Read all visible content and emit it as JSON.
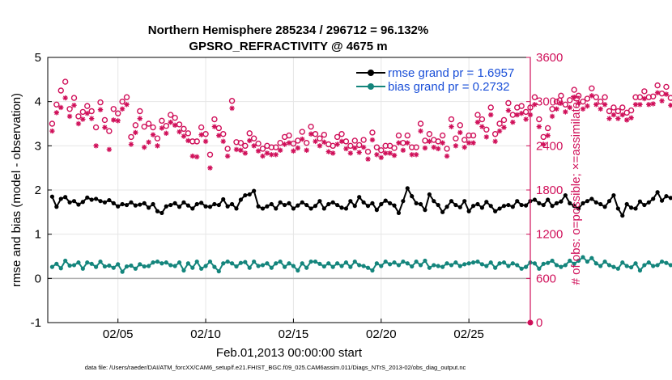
{
  "chart_data": {
    "type": "line",
    "title": "Northern Hemisphere 285234 / 296712 = 96.132%",
    "subtitle": "GPSRO_REFRACTIVITY @ 4675 m",
    "xlabel": "Feb.01,2013 00:00:00 start",
    "ylabel_left": "rmse and bias (model - observation)",
    "ylabel_right": "# of obs: o=possible; ×=assimilated",
    "ylim_left": [
      -1,
      5
    ],
    "ylim_right": [
      0,
      3600
    ],
    "xlim": [
      "2013-02-01",
      "2013-02-28"
    ],
    "x_tick_labels": [
      "02/05",
      "02/10",
      "02/15",
      "02/20",
      "02/25"
    ],
    "y_left_tick_labels": [
      "-1",
      "0",
      "1",
      "2",
      "3",
      "4",
      "5"
    ],
    "y_right_tick_labels": [
      "0",
      "600",
      "1200",
      "1800",
      "2400",
      "3000",
      "3600"
    ],
    "grid": true,
    "legend_position": "top-right",
    "footnote": "data file: /Users/raeder/DAI/ATM_forcXX/CAM6_setup/f.e21.FHIST_BGC.f09_025.CAM6assim.011/Diags_NTrS_2013-02/obs_diag_output.nc",
    "colors": {
      "rmse": "#000000",
      "bias": "#14857c",
      "obs_count": "#d0105a",
      "zero_line": "#b0b0b0"
    },
    "time_step_hours": 6,
    "series": [
      {
        "name": "rmse grand pr = 1.6957",
        "axis": "left",
        "values": [
          1.85,
          1.62,
          1.8,
          1.84,
          1.72,
          1.75,
          1.67,
          1.73,
          1.83,
          1.78,
          1.8,
          1.75,
          1.72,
          1.77,
          1.7,
          1.63,
          1.68,
          1.66,
          1.72,
          1.65,
          1.67,
          1.7,
          1.6,
          1.68,
          1.52,
          1.48,
          1.63,
          1.66,
          1.7,
          1.62,
          1.72,
          1.65,
          1.58,
          1.68,
          1.71,
          1.63,
          1.62,
          1.68,
          1.66,
          1.79,
          1.63,
          1.68,
          1.58,
          1.78,
          1.88,
          1.9,
          1.98,
          1.63,
          1.58,
          1.63,
          1.68,
          1.58,
          1.72,
          1.66,
          1.7,
          1.58,
          1.65,
          1.72,
          1.66,
          1.58,
          1.64,
          1.75,
          1.58,
          1.68,
          1.72,
          1.66,
          1.6,
          1.58,
          1.75,
          1.64,
          1.84,
          1.72,
          1.64,
          1.7,
          1.55,
          1.68,
          1.76,
          1.7,
          1.65,
          1.48,
          1.75,
          2.04,
          1.86,
          1.7,
          1.68,
          1.55,
          1.9,
          1.75,
          1.66,
          1.5,
          1.62,
          1.75,
          1.66,
          1.61,
          1.75,
          1.52,
          1.64,
          1.68,
          1.6,
          1.73,
          1.64,
          1.52,
          1.58,
          1.64,
          1.66,
          1.62,
          1.75,
          1.66,
          1.65,
          1.75,
          1.78,
          1.7,
          1.66,
          1.78,
          1.64,
          1.7,
          1.74,
          1.88,
          1.7,
          1.64,
          1.58,
          1.7,
          1.75,
          1.8,
          1.72,
          1.68,
          1.62,
          1.75,
          1.88,
          1.58,
          1.42,
          1.68,
          1.6,
          1.58,
          1.74,
          1.66,
          1.72,
          1.8,
          1.95,
          1.76,
          1.86,
          1.82,
          1.75,
          1.9,
          1.86,
          1.92,
          1.85,
          1.9,
          1.78,
          1.82,
          1.76
        ]
      },
      {
        "name": "bias grand pr = 0.2732",
        "axis": "left",
        "values": [
          0.26,
          0.33,
          0.23,
          0.4,
          0.29,
          0.3,
          0.36,
          0.22,
          0.36,
          0.33,
          0.26,
          0.38,
          0.27,
          0.29,
          0.24,
          0.32,
          0.15,
          0.27,
          0.29,
          0.22,
          0.32,
          0.27,
          0.28,
          0.36,
          0.38,
          0.34,
          0.36,
          0.3,
          0.28,
          0.36,
          0.18,
          0.34,
          0.24,
          0.38,
          0.22,
          0.28,
          0.38,
          0.26,
          0.16,
          0.34,
          0.38,
          0.34,
          0.27,
          0.35,
          0.37,
          0.24,
          0.38,
          0.28,
          0.3,
          0.34,
          0.24,
          0.34,
          0.38,
          0.26,
          0.34,
          0.28,
          0.18,
          0.34,
          0.24,
          0.38,
          0.38,
          0.33,
          0.27,
          0.34,
          0.26,
          0.34,
          0.28,
          0.36,
          0.26,
          0.38,
          0.3,
          0.28,
          0.24,
          0.18,
          0.34,
          0.28,
          0.38,
          0.32,
          0.36,
          0.3,
          0.38,
          0.34,
          0.27,
          0.38,
          0.3,
          0.4,
          0.24,
          0.3,
          0.28,
          0.26,
          0.34,
          0.3,
          0.36,
          0.28,
          0.32,
          0.34,
          0.36,
          0.38,
          0.32,
          0.28,
          0.36,
          0.24,
          0.34,
          0.36,
          0.28,
          0.34,
          0.3,
          0.22,
          0.26,
          0.36,
          0.34,
          0.22,
          0.33,
          0.35,
          0.4,
          0.3,
          0.26,
          0.3,
          0.4,
          0.33,
          0.4,
          0.48,
          0.38,
          0.46,
          0.34,
          0.28,
          0.38,
          0.3,
          0.26,
          0.22,
          0.36,
          0.28,
          0.25,
          0.34,
          0.18,
          0.3,
          0.36,
          0.28,
          0.3,
          0.38,
          0.35,
          0.3,
          0.34,
          0.28,
          0.38,
          0.22,
          0.26,
          0.33,
          0.38,
          0.03,
          0.33,
          0.3
        ]
      },
      {
        "name": "obs possible (o)",
        "axis": "right",
        "marker": "o",
        "values": [
          2700,
          2960,
          3150,
          3270,
          2900,
          3050,
          2800,
          2860,
          2940,
          2870,
          2650,
          2990,
          2750,
          2600,
          2900,
          2840,
          3000,
          3060,
          2520,
          2680,
          2870,
          2660,
          2700,
          2650,
          2500,
          2740,
          2670,
          2820,
          2780,
          2690,
          2630,
          2570,
          2460,
          2460,
          2650,
          2560,
          2280,
          2760,
          2640,
          2560,
          2360,
          3010,
          2450,
          2440,
          2400,
          2570,
          2500,
          2430,
          2360,
          2400,
          2380,
          2380,
          2440,
          2520,
          2540,
          2430,
          2470,
          2590,
          2440,
          2660,
          2560,
          2500,
          2550,
          2420,
          2400,
          2520,
          2560,
          2460,
          2400,
          2470,
          2410,
          2480,
          2320,
          2580,
          2380,
          2340,
          2400,
          2400,
          2370,
          2540,
          2440,
          2540,
          2380,
          2380,
          2700,
          2470,
          2560,
          2480,
          2460,
          2540,
          2360,
          2760,
          2500,
          2680,
          2480,
          2540,
          2540,
          2820,
          2760,
          2620,
          2920,
          2560,
          2700,
          2750,
          2980,
          2820,
          2920,
          2940,
          2860,
          2920,
          3060,
          2760,
          2520,
          2640,
          2900,
          3000,
          3080,
          2960,
          3020,
          3160,
          3080,
          3000,
          3040,
          3180,
          3060,
          3000,
          3060,
          2870,
          2920,
          2870,
          2920,
          2850,
          2880,
          3060,
          3060,
          3140,
          3060,
          3070,
          3220,
          3110,
          3200,
          3050,
          3110,
          3000,
          2780,
          3180,
          3260,
          3050,
          3150,
          3090,
          3000,
          3230,
          3100
        ]
      },
      {
        "name": "obs assimilated (×)",
        "axis": "right",
        "marker": "x",
        "values": [
          2600,
          2850,
          2920,
          3050,
          2800,
          2950,
          2700,
          2760,
          2840,
          2770,
          2400,
          2890,
          2650,
          2350,
          2750,
          2740,
          2900,
          2960,
          2420,
          2580,
          2770,
          2380,
          2450,
          2550,
          2400,
          2640,
          2570,
          2720,
          2680,
          2590,
          2530,
          2470,
          2260,
          2250,
          2550,
          2460,
          2100,
          2660,
          2540,
          2460,
          2260,
          2910,
          2350,
          2340,
          2300,
          2470,
          2400,
          2330,
          2260,
          2300,
          2280,
          2280,
          2340,
          2420,
          2440,
          2330,
          2370,
          2490,
          2340,
          2560,
          2460,
          2400,
          2450,
          2320,
          2300,
          2420,
          2460,
          2360,
          2300,
          2370,
          2310,
          2380,
          2220,
          2480,
          2280,
          2240,
          2300,
          2300,
          2270,
          2440,
          2340,
          2440,
          2280,
          2280,
          2600,
          2370,
          2460,
          2380,
          2360,
          2440,
          2260,
          2660,
          2400,
          2580,
          2380,
          2440,
          2440,
          2720,
          2660,
          2520,
          2820,
          2460,
          2600,
          2650,
          2880,
          2720,
          2820,
          2840,
          2760,
          2820,
          2960,
          2660,
          2420,
          2540,
          2800,
          2900,
          2980,
          2860,
          2920,
          3060,
          2980,
          2900,
          2940,
          3080,
          2960,
          2900,
          2960,
          2770,
          2820,
          2770,
          2820,
          2750,
          2780,
          2960,
          2960,
          3040,
          2960,
          2970,
          3120,
          3010,
          3100,
          2950,
          3010,
          2900,
          2680,
          3080,
          3160,
          2950,
          3050,
          2990,
          2900,
          3130,
          3000
        ]
      }
    ]
  }
}
